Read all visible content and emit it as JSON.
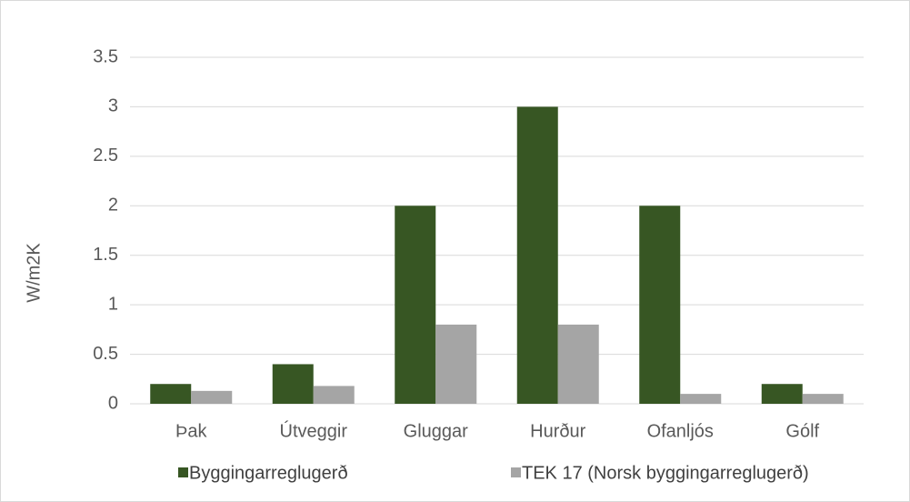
{
  "chart_data": {
    "type": "bar",
    "y_label": "W/m2K",
    "categories": [
      "Þak",
      "Útveggir",
      "Gluggar",
      "Hurður",
      "Ofanljós",
      "Gólf"
    ],
    "series": [
      {
        "name": "Byggingarreglugerð",
        "color": "#375623",
        "values": [
          0.2,
          0.4,
          2,
          3,
          2,
          0.2
        ]
      },
      {
        "name": "TEK 17 (Norsk byggingarreglugerð)",
        "color": "#a5a5a5",
        "values": [
          0.13,
          0.18,
          0.8,
          0.8,
          0.1,
          0.1
        ]
      }
    ],
    "ylim": [
      0,
      3.5
    ],
    "yticks": [
      0,
      0.5,
      1,
      1.5,
      2,
      2.5,
      3,
      3.5
    ],
    "grid": true,
    "legend": "bottom"
  }
}
